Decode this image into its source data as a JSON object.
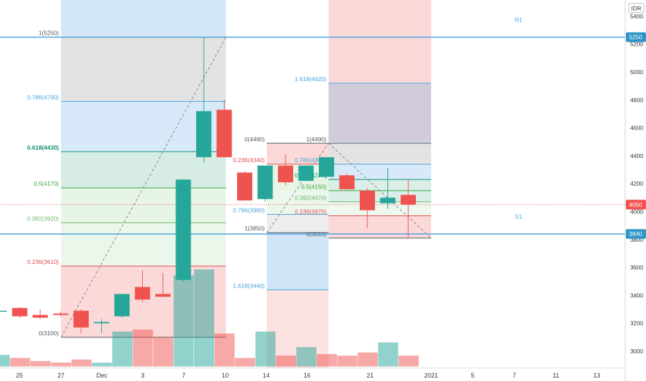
{
  "chart_data": {
    "type": "candlestick",
    "currency": "IDR",
    "y_axis": {
      "ticks": [
        3000,
        3200,
        3400,
        3600,
        3800,
        4000,
        4200,
        4400,
        4600,
        4800,
        5000,
        5200,
        5400
      ]
    },
    "x_axis": {
      "ticks": [
        "25",
        "27",
        "Dec",
        "3",
        "7",
        "10",
        "14",
        "16",
        "21",
        "2021",
        "5",
        "7",
        "11",
        "13"
      ]
    },
    "price_badges": [
      {
        "value": "5250",
        "color": "#2f96c8"
      },
      {
        "value": "4050",
        "color": "#ef5350"
      },
      {
        "value": "3840",
        "color": "#2f96c8"
      }
    ],
    "horizontal_lines": [
      {
        "label": "R1",
        "value": 5250,
        "color": "#4aa3df"
      },
      {
        "label": "S1",
        "value": 3840,
        "color": "#4aa3df"
      }
    ],
    "current_price": 4050,
    "candles": [
      {
        "o": 3290,
        "h": 3300,
        "l": 3280,
        "c": 3290
      },
      {
        "o": 3310,
        "h": 3315,
        "l": 3240,
        "c": 3250
      },
      {
        "o": 3260,
        "h": 3300,
        "l": 3230,
        "c": 3240
      },
      {
        "o": 3270,
        "h": 3285,
        "l": 3250,
        "c": 3260
      },
      {
        "o": 3290,
        "h": 3300,
        "l": 3130,
        "c": 3170
      },
      {
        "o": 3200,
        "h": 3230,
        "l": 3130,
        "c": 3210
      },
      {
        "o": 3250,
        "h": 3410,
        "l": 3240,
        "c": 3410
      },
      {
        "o": 3460,
        "h": 3580,
        "l": 3350,
        "c": 3370
      },
      {
        "o": 3410,
        "h": 3560,
        "l": 3400,
        "c": 3390
      },
      {
        "o": 3510,
        "h": 4230,
        "l": 3500,
        "c": 4230
      },
      {
        "o": 4390,
        "h": 5250,
        "l": 4350,
        "c": 4720
      },
      {
        "o": 4730,
        "h": 4800,
        "l": 4390,
        "c": 4390
      },
      {
        "o": 4280,
        "h": 4290,
        "l": 4080,
        "c": 4080
      },
      {
        "o": 4090,
        "h": 4330,
        "l": 4070,
        "c": 4330
      },
      {
        "o": 4330,
        "h": 4410,
        "l": 4190,
        "c": 4210
      },
      {
        "o": 4220,
        "h": 4330,
        "l": 4220,
        "c": 4330
      },
      {
        "o": 4250,
        "h": 4390,
        "l": 4240,
        "c": 4390
      },
      {
        "o": 4260,
        "h": 4270,
        "l": 4160,
        "c": 4160
      },
      {
        "o": 4150,
        "h": 4170,
        "l": 3880,
        "c": 4010
      },
      {
        "o": 4060,
        "h": 4310,
        "l": 4020,
        "c": 4100
      },
      {
        "o": 4120,
        "h": 4230,
        "l": 3810,
        "c": 4050
      }
    ],
    "volumes": [
      {
        "v": 0.3,
        "up": true
      },
      {
        "v": 0.22,
        "up": false
      },
      {
        "v": 0.14,
        "up": false
      },
      {
        "v": 0.1,
        "up": false
      },
      {
        "v": 0.18,
        "up": false
      },
      {
        "v": 0.1,
        "up": true
      },
      {
        "v": 0.9,
        "up": true
      },
      {
        "v": 0.95,
        "up": false
      },
      {
        "v": 0.75,
        "up": false
      },
      {
        "v": 2.35,
        "up": true
      },
      {
        "v": 2.5,
        "up": true
      },
      {
        "v": 0.85,
        "up": false
      },
      {
        "v": 0.22,
        "up": false
      },
      {
        "v": 0.9,
        "up": true
      },
      {
        "v": 0.28,
        "up": false
      },
      {
        "v": 0.5,
        "up": true
      },
      {
        "v": 0.32,
        "up": false
      },
      {
        "v": 0.28,
        "up": false
      },
      {
        "v": 0.36,
        "up": false
      },
      {
        "v": 0.62,
        "up": true
      },
      {
        "v": 0.28,
        "up": false
      }
    ],
    "fib_main": {
      "levels": [
        {
          "text": "1(5250)",
          "value": 5250,
          "color": "#555555",
          "fill": "rgba(128,128,128,0.22)"
        },
        {
          "text": "0.786(4790)",
          "value": 4790,
          "color": "#4aa3df",
          "fill": "rgba(100,170,230,0.25)"
        },
        {
          "text": "0.618(4430)",
          "value": 4430,
          "color": "#0e8f72",
          "fill": "rgba(90,180,150,0.25)"
        },
        {
          "text": "0.5(4170)",
          "value": 4170,
          "color": "#3aa53a",
          "fill": "rgba(120,200,120,0.18)"
        },
        {
          "text": "0.382(3920)",
          "value": 3920,
          "color": "#6ab86a",
          "fill": "rgba(150,210,150,0.18)"
        },
        {
          "text": "0.236(3610)",
          "value": 3610,
          "color": "#e24b4b",
          "fill": "rgba(240,120,120,0.28)"
        },
        {
          "text": "0(3100)",
          "value": 3100,
          "color": "#555555",
          "fill": ""
        }
      ]
    },
    "fib_second": {
      "levels": [
        {
          "text": "0(4490)",
          "value": 4490,
          "color": "#555555"
        },
        {
          "text": "0.236(4340)",
          "value": 4340,
          "color": "#e24b4b"
        },
        {
          "text": "0.786(3980)",
          "value": 3980,
          "color": "#4aa3df"
        },
        {
          "text": "1(3850)",
          "value": 3850,
          "color": "#555555"
        },
        {
          "text": "1.618(3440)",
          "value": 3440,
          "color": "#4aa3df"
        }
      ]
    },
    "fib_third": {
      "levels": [
        {
          "text": "1.618(4920)",
          "value": 4920,
          "color": "#4aa3df"
        },
        {
          "text": "1(4490)",
          "value": 4490,
          "color": "#555555"
        },
        {
          "text": "0.786(4340)",
          "value": 4340,
          "color": "#4aa3df"
        },
        {
          "text": "0.618(4230)",
          "value": 4230,
          "color": "#0e8f72"
        },
        {
          "text": "0.5(4150)",
          "value": 4150,
          "color": "#3aa53a"
        },
        {
          "text": "0.382(4070)",
          "value": 4070,
          "color": "#6ab86a"
        },
        {
          "text": "0.236(3970)",
          "value": 3970,
          "color": "#e24b4b"
        },
        {
          "text": "0(3810)",
          "value": 3810,
          "color": "#555555"
        }
      ]
    }
  }
}
